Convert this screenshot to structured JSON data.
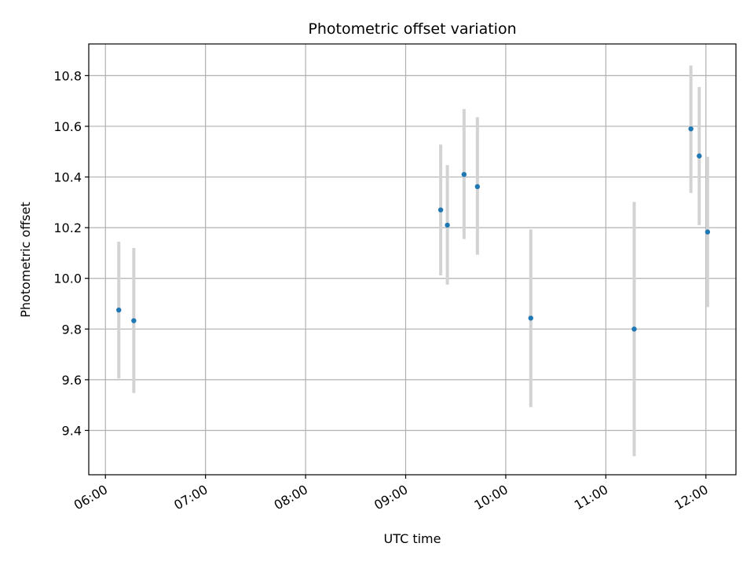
{
  "chart_data": {
    "type": "scatter",
    "title": "Photometric offset variation",
    "xlabel": "UTC time",
    "ylabel": "Photometric offset",
    "x_ticks": [
      "06:00",
      "07:00",
      "08:00",
      "09:00",
      "10:00",
      "11:00",
      "12:00"
    ],
    "y_ticks": [
      "9.4",
      "9.6",
      "9.8",
      "10.0",
      "10.2",
      "10.4",
      "10.6",
      "10.8"
    ],
    "xlim": [
      "05:50",
      "12:18"
    ],
    "ylim": [
      9.225,
      10.925
    ],
    "grid": true,
    "marker_color": "#1f77b4",
    "errorbar_color": "#d3d3d3",
    "points": [
      {
        "time": "06:08",
        "y": 9.875,
        "low": 9.605,
        "high": 10.145
      },
      {
        "time": "06:17",
        "y": 9.833,
        "low": 9.548,
        "high": 10.12
      },
      {
        "time": "09:21",
        "y": 10.27,
        "low": 10.012,
        "high": 10.528
      },
      {
        "time": "09:25",
        "y": 10.21,
        "low": 9.975,
        "high": 10.447
      },
      {
        "time": "09:35",
        "y": 10.41,
        "low": 10.155,
        "high": 10.668
      },
      {
        "time": "09:43",
        "y": 10.362,
        "low": 10.093,
        "high": 10.636
      },
      {
        "time": "10:15",
        "y": 9.843,
        "low": 9.492,
        "high": 10.193
      },
      {
        "time": "11:17",
        "y": 9.8,
        "low": 9.298,
        "high": 10.302
      },
      {
        "time": "11:51",
        "y": 10.59,
        "low": 10.337,
        "high": 10.84
      },
      {
        "time": "11:56",
        "y": 10.483,
        "low": 10.21,
        "high": 10.755
      },
      {
        "time": "12:01",
        "y": 10.183,
        "low": 9.887,
        "high": 10.48
      }
    ]
  }
}
